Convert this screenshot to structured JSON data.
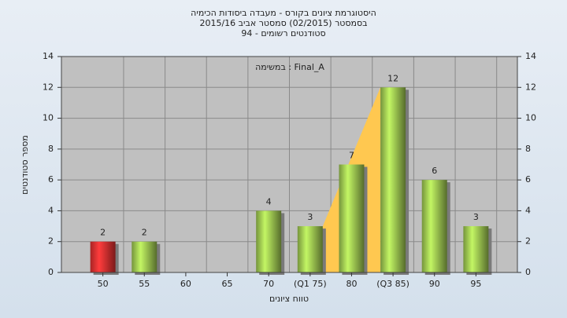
{
  "chart_data": {
    "type": "bar",
    "title_lines": [
      "היסטוגרמת ציונים בקורס - מעבדה ביסודות הכימיה",
      "בסמסטר  (02/2015)  סמסטר אביב 2015/16",
      "סטודנטים רשומים - 94"
    ],
    "annotation": "במשימה : Final_A",
    "x_label": "טווח ציונים",
    "y_label": "מספר סטודנטים",
    "categories": [
      "50",
      "55",
      "60",
      "65",
      "70",
      "(Q1 75)",
      "80",
      "(Q3 85)",
      "90",
      "95"
    ],
    "values": [
      2,
      2,
      0,
      0,
      4,
      3,
      7,
      12,
      6,
      3
    ],
    "colors": [
      "#e03030",
      "#9cc550",
      "#9cc550",
      "#9cc550",
      "#9cc550",
      "#9cc550",
      "#9cc550",
      "#9cc550",
      "#9cc550",
      "#9cc550"
    ],
    "quartile_fill": "#ffc850",
    "ylim": [
      0,
      14
    ],
    "yticks": [
      0,
      2,
      4,
      6,
      8,
      10,
      12,
      14
    ],
    "grid": true
  }
}
